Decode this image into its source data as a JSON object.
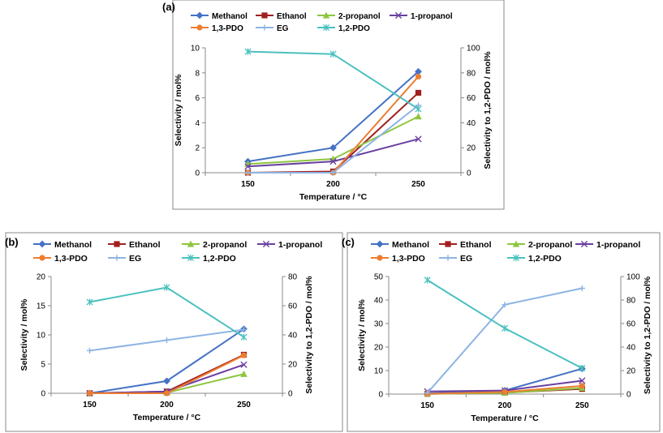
{
  "colors": {
    "Methanol": "#4472C4",
    "Ethanol": "#A0201F",
    "2-propanol": "#8DC63F",
    "1-propanol": "#6A3FA0",
    "1,3-PDO": "#ED7D31",
    "EG": "#8EB4E3",
    "1,2-PDO": "#4BC0C0"
  },
  "chart_data": [
    {
      "type": "line",
      "panel_label": "(a)",
      "categories": [
        "150",
        "200",
        "250"
      ],
      "xlabel": "Temperature / °C",
      "ylabel": "Selectivity / mol%",
      "ylabel_right": "Selectivity to 1,2-PDO / mol%",
      "ylim": [
        0,
        10
      ],
      "yticks": [
        "0",
        "2",
        "4",
        "6",
        "8",
        "10"
      ],
      "ylim_right": [
        0,
        100
      ],
      "yticks_right": [
        "0",
        "20",
        "40",
        "60",
        "80",
        "100"
      ],
      "series": [
        {
          "name": "Methanol",
          "marker": "diamond",
          "axis": "left",
          "values": [
            0.9,
            2.0,
            8.1
          ]
        },
        {
          "name": "Ethanol",
          "marker": "square",
          "axis": "left",
          "values": [
            0.0,
            0.1,
            6.4
          ]
        },
        {
          "name": "2-propanol",
          "marker": "triangle",
          "axis": "left",
          "values": [
            0.7,
            1.1,
            4.5
          ]
        },
        {
          "name": "1-propanol",
          "marker": "x",
          "axis": "left",
          "values": [
            0.5,
            0.9,
            2.7
          ]
        },
        {
          "name": "1,3-PDO",
          "marker": "circle",
          "axis": "left",
          "values": [
            0.0,
            0.0,
            7.7
          ]
        },
        {
          "name": "EG",
          "marker": "plus",
          "axis": "left",
          "values": [
            0.0,
            0.0,
            5.4
          ]
        },
        {
          "name": "1,2-PDO",
          "marker": "star",
          "axis": "right",
          "values": [
            97,
            95,
            51
          ]
        }
      ]
    },
    {
      "type": "line",
      "panel_label": "(b)",
      "categories": [
        "150",
        "200",
        "250"
      ],
      "xlabel": "Temperature / °C",
      "ylabel": "Selectivity / mol%",
      "ylabel_right": "Selectivity to 1,2-PDO / mol%",
      "ylim": [
        0,
        20
      ],
      "yticks": [
        "0",
        "5",
        "10",
        "15",
        "20"
      ],
      "ylim_right": [
        0,
        80
      ],
      "yticks_right": [
        "0",
        "20",
        "40",
        "60",
        "80"
      ],
      "series": [
        {
          "name": "Methanol",
          "marker": "diamond",
          "axis": "left",
          "values": [
            0.0,
            2.1,
            11.0
          ]
        },
        {
          "name": "Ethanol",
          "marker": "square",
          "axis": "left",
          "values": [
            0.0,
            0.3,
            6.6
          ]
        },
        {
          "name": "2-propanol",
          "marker": "triangle",
          "axis": "left",
          "values": [
            0.0,
            0.1,
            3.3
          ]
        },
        {
          "name": "1-propanol",
          "marker": "x",
          "axis": "left",
          "values": [
            0.0,
            0.3,
            4.9
          ]
        },
        {
          "name": "1,3-PDO",
          "marker": "circle",
          "axis": "left",
          "values": [
            0.0,
            0.0,
            6.5
          ]
        },
        {
          "name": "EG",
          "marker": "plus",
          "axis": "left",
          "values": [
            7.3,
            9.1,
            10.9
          ]
        },
        {
          "name": "1,2-PDO",
          "marker": "star",
          "axis": "right",
          "values": [
            62.5,
            72.5,
            38.5
          ]
        }
      ]
    },
    {
      "type": "line",
      "panel_label": "(c)",
      "categories": [
        "150",
        "200",
        "250"
      ],
      "xlabel": "Temperature / °C",
      "ylabel": "Selectivity / mol%",
      "ylabel_right": "Selectivity to 1,2-PDO / mol%",
      "ylim": [
        0,
        50
      ],
      "yticks": [
        "0",
        "10",
        "20",
        "30",
        "40",
        "50"
      ],
      "ylim_right": [
        0,
        100
      ],
      "yticks_right": [
        "0",
        "20",
        "40",
        "60",
        "80",
        "100"
      ],
      "series": [
        {
          "name": "Methanol",
          "marker": "diamond",
          "axis": "left",
          "values": [
            0.3,
            1.5,
            10.8
          ]
        },
        {
          "name": "Ethanol",
          "marker": "square",
          "axis": "left",
          "values": [
            0.1,
            0.6,
            2.2
          ]
        },
        {
          "name": "2-propanol",
          "marker": "triangle",
          "axis": "left",
          "values": [
            0.1,
            0.5,
            2.6
          ]
        },
        {
          "name": "1-propanol",
          "marker": "x",
          "axis": "left",
          "values": [
            1.1,
            1.5,
            5.7
          ]
        },
        {
          "name": "1,3-PDO",
          "marker": "circle",
          "axis": "left",
          "values": [
            0.1,
            0.9,
            3.5
          ]
        },
        {
          "name": "EG",
          "marker": "plus",
          "axis": "left",
          "values": [
            0.5,
            38.0,
            45.0
          ]
        },
        {
          "name": "1,2-PDO",
          "marker": "star",
          "axis": "right",
          "values": [
            97,
            56,
            22
          ]
        }
      ]
    }
  ]
}
